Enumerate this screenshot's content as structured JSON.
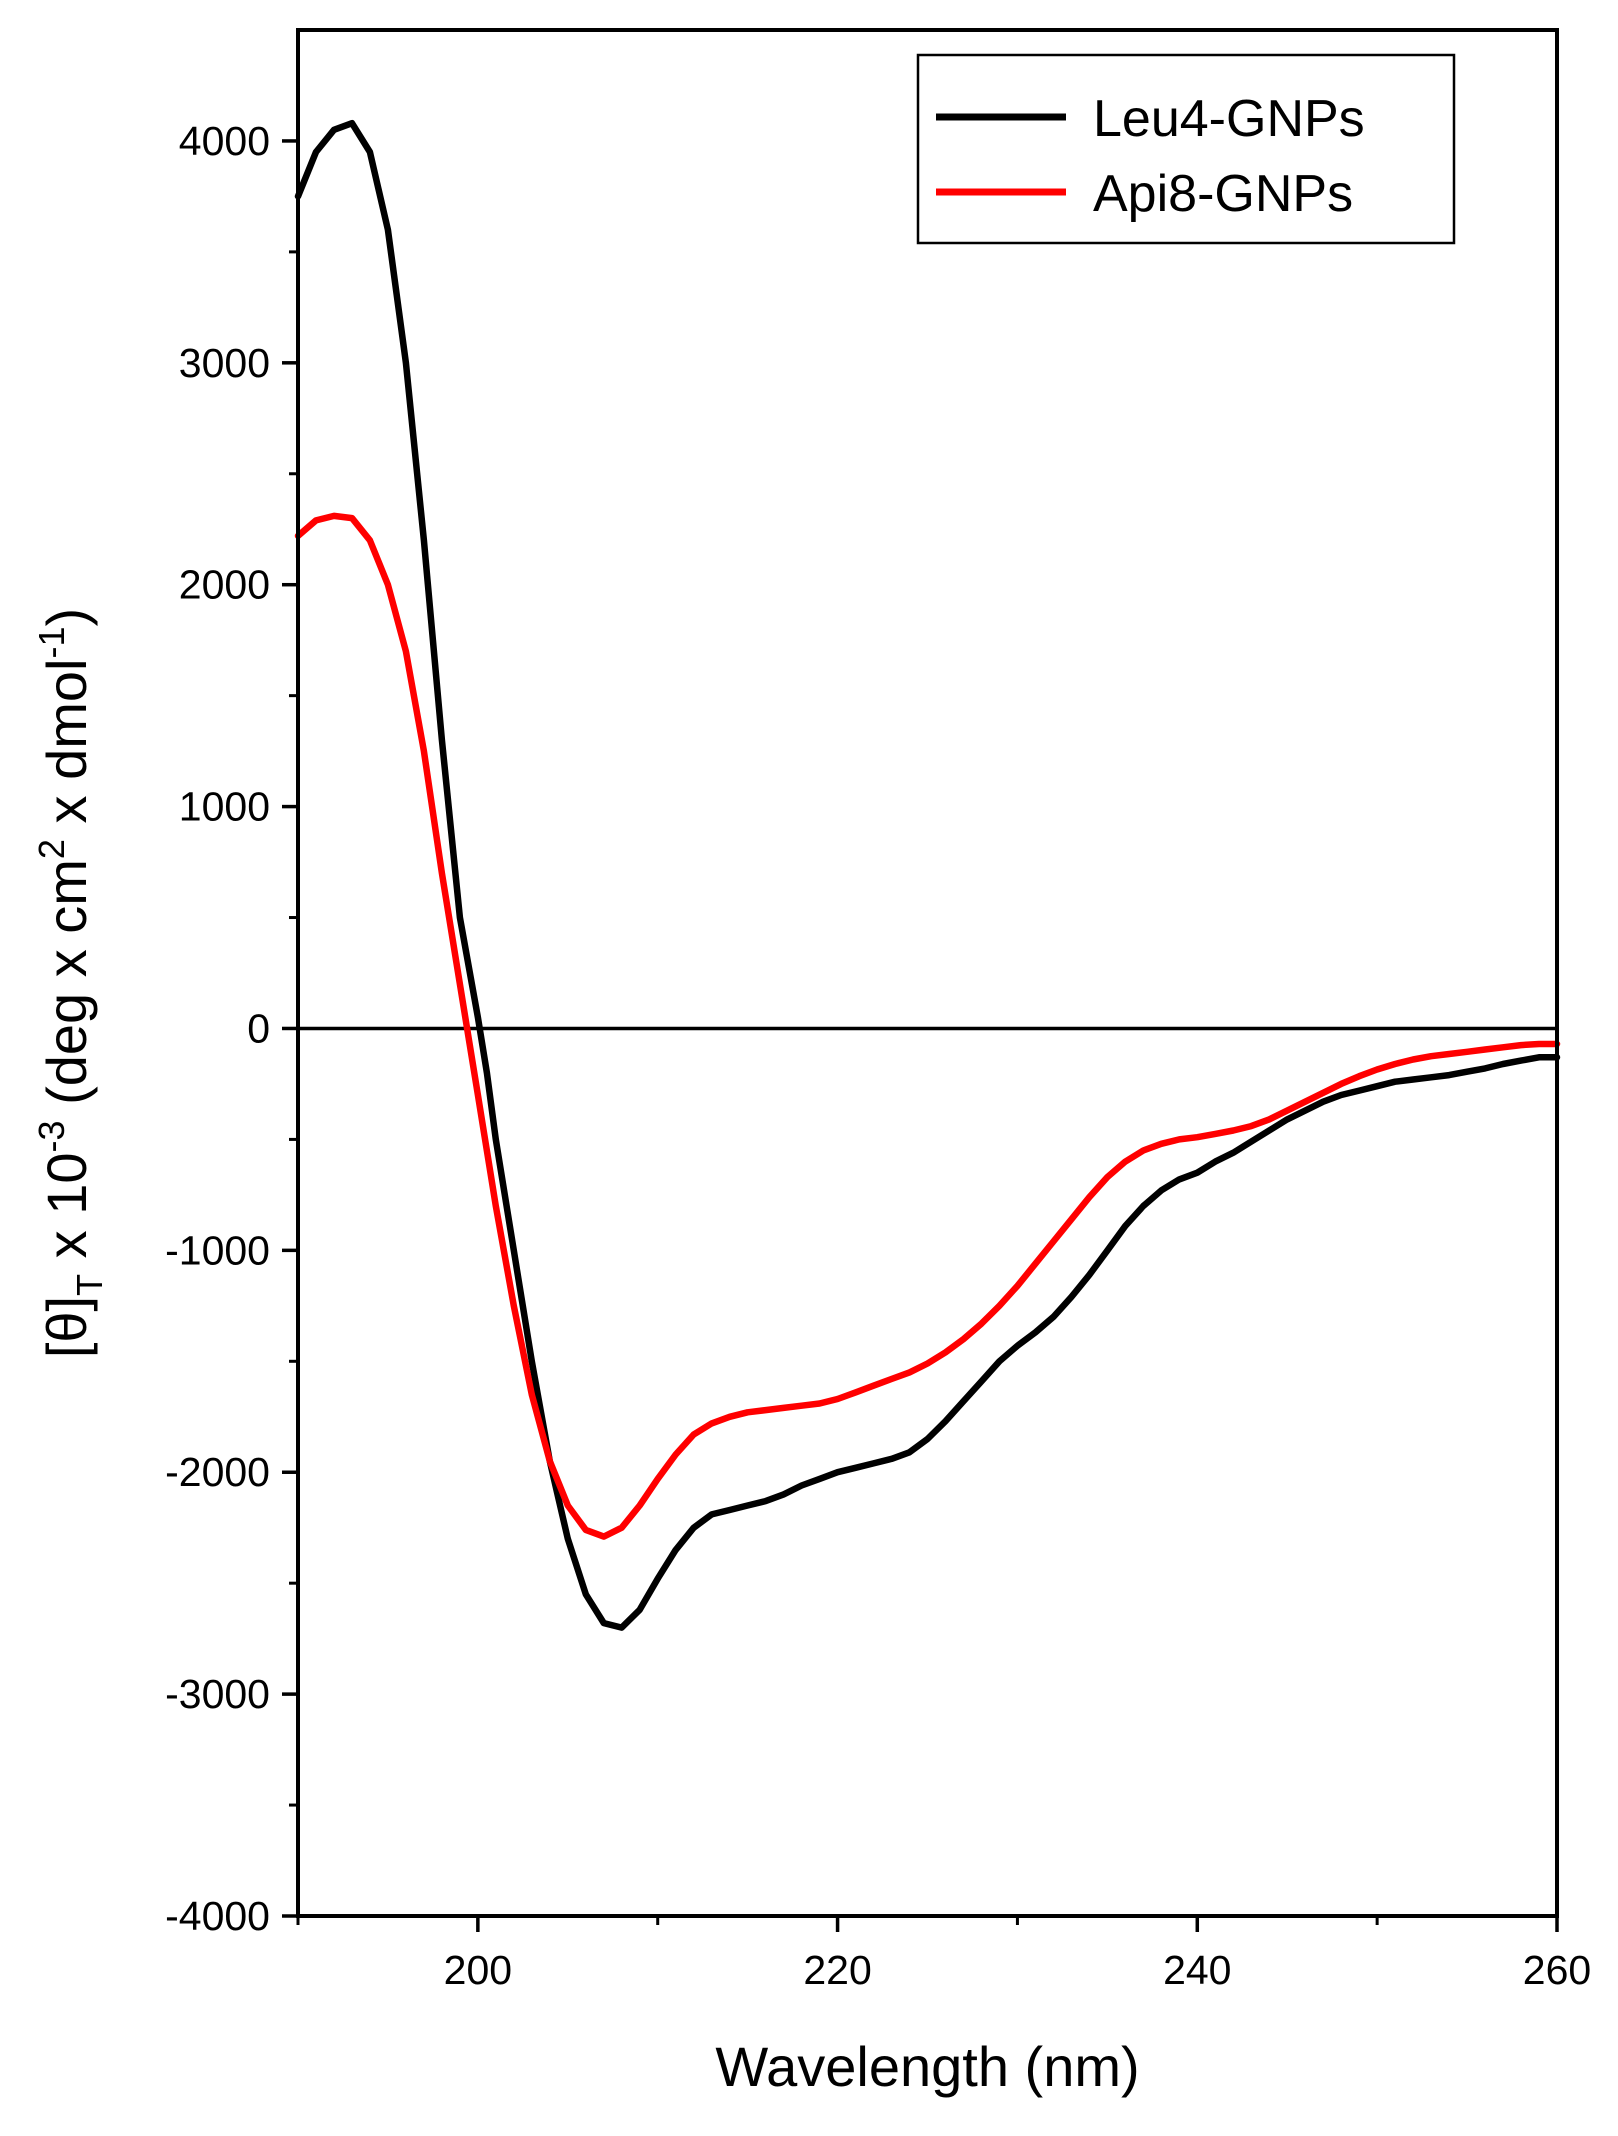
{
  "chart_data": {
    "type": "line",
    "title": "",
    "xlabel": "Wavelength (nm)",
    "ylabel": {
      "base": "[θ]",
      "sub": "T",
      "mid": " x 10",
      "exp1": "-3",
      "unit_a": " (deg x cm",
      "exp2": "2",
      "unit_b": " x dmol",
      "exp3": "-1",
      "unit_c": ")"
    },
    "xlim": [
      190,
      260
    ],
    "ylim": [
      -4000,
      4500
    ],
    "xticks": [
      200,
      220,
      240,
      260
    ],
    "xtick_labels": [
      "200",
      "220",
      "240",
      "260"
    ],
    "yticks": [
      -4000,
      -3000,
      -2000,
      -1000,
      0,
      1000,
      2000,
      3000,
      4000
    ],
    "ytick_labels": [
      "-4000",
      "-3000",
      "-2000",
      "-1000",
      "0",
      "1000",
      "2000",
      "3000",
      "4000"
    ],
    "grid": false,
    "zero_line": true,
    "legend": {
      "position": "top-right"
    },
    "series": [
      {
        "name": "Leu4-GNPs",
        "color": "#000000",
        "points": [
          [
            190,
            3750
          ],
          [
            191,
            3950
          ],
          [
            192,
            4050
          ],
          [
            193,
            4080
          ],
          [
            194,
            3950
          ],
          [
            195,
            3600
          ],
          [
            196,
            3000
          ],
          [
            197,
            2200
          ],
          [
            198,
            1300
          ],
          [
            199,
            500
          ],
          [
            200,
            50
          ],
          [
            200.5,
            -200
          ],
          [
            201,
            -500
          ],
          [
            202,
            -1000
          ],
          [
            203,
            -1500
          ],
          [
            204,
            -1950
          ],
          [
            205,
            -2300
          ],
          [
            206,
            -2550
          ],
          [
            207,
            -2680
          ],
          [
            208,
            -2700
          ],
          [
            209,
            -2620
          ],
          [
            210,
            -2480
          ],
          [
            211,
            -2350
          ],
          [
            212,
            -2250
          ],
          [
            213,
            -2190
          ],
          [
            214,
            -2170
          ],
          [
            215,
            -2150
          ],
          [
            216,
            -2130
          ],
          [
            217,
            -2100
          ],
          [
            218,
            -2060
          ],
          [
            219,
            -2030
          ],
          [
            220,
            -2000
          ],
          [
            221,
            -1980
          ],
          [
            222,
            -1960
          ],
          [
            223,
            -1940
          ],
          [
            224,
            -1910
          ],
          [
            225,
            -1850
          ],
          [
            226,
            -1770
          ],
          [
            227,
            -1680
          ],
          [
            228,
            -1590
          ],
          [
            229,
            -1500
          ],
          [
            230,
            -1430
          ],
          [
            231,
            -1370
          ],
          [
            232,
            -1300
          ],
          [
            233,
            -1210
          ],
          [
            234,
            -1110
          ],
          [
            235,
            -1000
          ],
          [
            236,
            -890
          ],
          [
            237,
            -800
          ],
          [
            238,
            -730
          ],
          [
            239,
            -680
          ],
          [
            240,
            -650
          ],
          [
            241,
            -600
          ],
          [
            242,
            -560
          ],
          [
            243,
            -510
          ],
          [
            244,
            -460
          ],
          [
            245,
            -410
          ],
          [
            246,
            -370
          ],
          [
            247,
            -330
          ],
          [
            248,
            -300
          ],
          [
            249,
            -280
          ],
          [
            250,
            -260
          ],
          [
            251,
            -240
          ],
          [
            252,
            -230
          ],
          [
            253,
            -220
          ],
          [
            254,
            -210
          ],
          [
            255,
            -195
          ],
          [
            256,
            -180
          ],
          [
            257,
            -160
          ],
          [
            258,
            -145
          ],
          [
            259,
            -130
          ],
          [
            260,
            -130
          ]
        ]
      },
      {
        "name": "Api8-GNPs",
        "color": "#ff0000",
        "points": [
          [
            190,
            2220
          ],
          [
            191,
            2290
          ],
          [
            192,
            2310
          ],
          [
            193,
            2300
          ],
          [
            194,
            2200
          ],
          [
            195,
            2000
          ],
          [
            196,
            1700
          ],
          [
            197,
            1250
          ],
          [
            198,
            700
          ],
          [
            199,
            200
          ],
          [
            199.5,
            -50
          ],
          [
            200,
            -300
          ],
          [
            201,
            -800
          ],
          [
            202,
            -1250
          ],
          [
            203,
            -1650
          ],
          [
            204,
            -1950
          ],
          [
            205,
            -2150
          ],
          [
            206,
            -2260
          ],
          [
            207,
            -2290
          ],
          [
            208,
            -2250
          ],
          [
            209,
            -2150
          ],
          [
            210,
            -2030
          ],
          [
            211,
            -1920
          ],
          [
            212,
            -1830
          ],
          [
            213,
            -1780
          ],
          [
            214,
            -1750
          ],
          [
            215,
            -1730
          ],
          [
            216,
            -1720
          ],
          [
            217,
            -1710
          ],
          [
            218,
            -1700
          ],
          [
            219,
            -1690
          ],
          [
            220,
            -1670
          ],
          [
            221,
            -1640
          ],
          [
            222,
            -1610
          ],
          [
            223,
            -1580
          ],
          [
            224,
            -1550
          ],
          [
            225,
            -1510
          ],
          [
            226,
            -1460
          ],
          [
            227,
            -1400
          ],
          [
            228,
            -1330
          ],
          [
            229,
            -1250
          ],
          [
            230,
            -1160
          ],
          [
            231,
            -1060
          ],
          [
            232,
            -960
          ],
          [
            233,
            -860
          ],
          [
            234,
            -760
          ],
          [
            235,
            -670
          ],
          [
            236,
            -600
          ],
          [
            237,
            -550
          ],
          [
            238,
            -520
          ],
          [
            239,
            -500
          ],
          [
            240,
            -490
          ],
          [
            241,
            -475
          ],
          [
            242,
            -460
          ],
          [
            243,
            -440
          ],
          [
            244,
            -410
          ],
          [
            245,
            -370
          ],
          [
            246,
            -330
          ],
          [
            247,
            -290
          ],
          [
            248,
            -250
          ],
          [
            249,
            -215
          ],
          [
            250,
            -185
          ],
          [
            251,
            -160
          ],
          [
            252,
            -140
          ],
          [
            253,
            -125
          ],
          [
            254,
            -115
          ],
          [
            255,
            -105
          ],
          [
            256,
            -95
          ],
          [
            257,
            -85
          ],
          [
            258,
            -75
          ],
          [
            259,
            -70
          ],
          [
            260,
            -70
          ]
        ]
      }
    ]
  }
}
